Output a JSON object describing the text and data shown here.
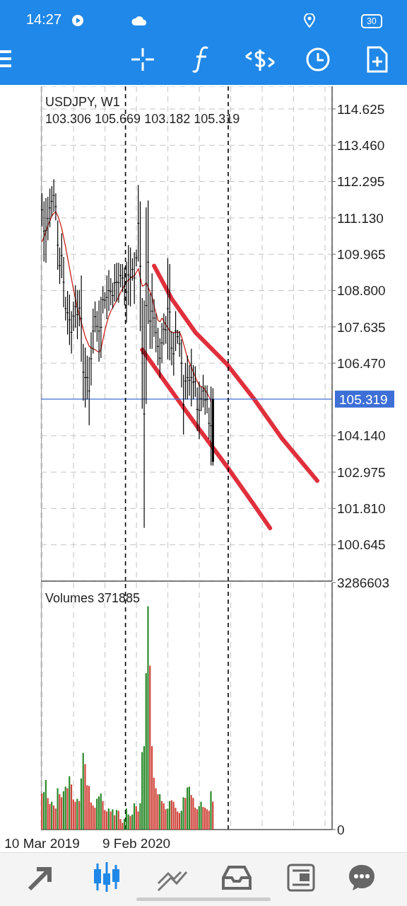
{
  "chart_data": [
    {
      "type": "candlestick",
      "title": "USDJPY, W1",
      "annotations": [
        "103.306 105.669 103.182 105.319",
        "14:27",
        "30"
      ],
      "x": [
        "2019-03-10",
        "2019-03-17",
        "2019-03-24",
        "2019-03-31",
        "2019-04-07",
        "2019-04-14",
        "2019-04-21",
        "2019-04-28",
        "2019-05-05",
        "2019-05-12",
        "2019-05-19",
        "2019-05-26",
        "2019-06-02",
        "2019-06-09",
        "2019-06-16",
        "2019-06-23",
        "2019-06-30",
        "2019-07-07",
        "2019-07-14",
        "2019-07-21",
        "2019-07-28",
        "2019-08-04",
        "2019-08-11",
        "2019-08-18",
        "2019-08-25",
        "2019-09-01",
        "2019-09-08",
        "2019-09-15",
        "2019-09-22",
        "2019-09-29",
        "2019-10-06",
        "2019-10-13",
        "2019-10-20",
        "2019-10-27",
        "2019-11-03",
        "2019-11-10",
        "2019-11-17",
        "2019-11-24",
        "2019-12-01",
        "2019-12-08",
        "2019-12-15",
        "2019-12-22",
        "2019-12-29",
        "2020-01-05",
        "2020-01-12",
        "2020-01-19",
        "2020-01-26",
        "2020-02-02",
        "2020-02-09",
        "2020-02-16",
        "2020-02-23",
        "2020-03-01",
        "2020-03-08",
        "2020-03-15",
        "2020-03-22",
        "2020-03-29",
        "2020-04-05",
        "2020-04-12",
        "2020-04-19",
        "2020-04-26",
        "2020-05-03",
        "2020-05-10",
        "2020-05-17",
        "2020-05-24",
        "2020-05-31",
        "2020-06-07",
        "2020-06-14",
        "2020-06-21",
        "2020-06-28",
        "2020-07-05",
        "2020-07-12",
        "2020-07-19",
        "2020-07-26",
        "2020-08-02",
        "2020-08-09",
        "2020-08-16",
        "2020-08-23",
        "2020-08-30",
        "2020-09-06",
        "2020-09-13",
        "2020-09-20",
        "2020-09-27",
        "2020-10-04",
        "2020-10-11",
        "2020-10-18",
        "2020-10-25",
        "2020-11-01",
        "2020-11-08"
      ],
      "ohlc": [
        [
          111.39,
          111.92,
          110.86,
          111.39
        ],
        [
          110.7,
          111.66,
          109.73,
          110.7
        ],
        [
          110.73,
          111.77,
          109.69,
          110.73
        ],
        [
          111.11,
          111.81,
          110.41,
          111.11
        ],
        [
          111.45,
          112.07,
          110.83,
          111.45
        ],
        [
          111.66,
          112.15,
          111.17,
          111.66
        ],
        [
          111.85,
          112.37,
          111.32,
          111.85
        ],
        [
          111.49,
          111.92,
          111.05,
          111.49
        ],
        [
          110.26,
          111.05,
          109.47,
          110.26
        ],
        [
          109.6,
          110.18,
          109.01,
          109.6
        ],
        [
          109.92,
          110.64,
          109.2,
          109.92
        ],
        [
          109.07,
          109.88,
          108.26,
          109.07
        ],
        [
          108.22,
          108.6,
          107.84,
          108.22
        ],
        [
          108.09,
          108.79,
          107.39,
          108.09
        ],
        [
          107.86,
          108.67,
          107.05,
          107.86
        ],
        [
          107.46,
          108.14,
          106.78,
          107.46
        ],
        [
          107.98,
          108.45,
          107.5,
          107.98
        ],
        [
          108.29,
          108.97,
          107.61,
          108.29
        ],
        [
          108.03,
          108.82,
          107.24,
          108.03
        ],
        [
          108.24,
          108.82,
          107.65,
          108.24
        ],
        [
          107.9,
          109.28,
          106.52,
          107.9
        ],
        [
          106.18,
          107.09,
          105.27,
          106.18
        ],
        [
          106.01,
          106.97,
          105.05,
          106.01
        ],
        [
          106.01,
          106.71,
          105.31,
          106.01
        ],
        [
          105.58,
          106.67,
          104.48,
          105.58
        ],
        [
          106.61,
          107.46,
          105.76,
          106.61
        ],
        [
          107.5,
          108.22,
          106.78,
          107.5
        ],
        [
          107.96,
          108.45,
          107.46,
          107.96
        ],
        [
          107.65,
          108.14,
          107.16,
          107.65
        ],
        [
          107.5,
          108.48,
          106.52,
          107.5
        ],
        [
          107.62,
          108.6,
          106.63,
          107.62
        ],
        [
          108.51,
          108.94,
          108.07,
          108.51
        ],
        [
          108.49,
          108.75,
          108.22,
          108.49
        ],
        [
          108.58,
          109.28,
          107.88,
          108.58
        ],
        [
          108.8,
          109.46,
          108.14,
          108.8
        ],
        [
          108.77,
          109.2,
          108.33,
          108.77
        ],
        [
          108.64,
          109.05,
          108.22,
          108.64
        ],
        [
          109.05,
          109.65,
          108.45,
          109.05
        ],
        [
          109.07,
          109.69,
          108.45,
          109.07
        ],
        [
          109.05,
          109.69,
          108.41,
          109.05
        ],
        [
          109.28,
          109.65,
          108.9,
          109.28
        ],
        [
          109.2,
          109.65,
          108.75,
          109.2
        ],
        [
          108.94,
          109.54,
          108.33,
          108.94
        ],
        [
          108.75,
          109.73,
          107.77,
          108.75
        ],
        [
          109.3,
          110.26,
          108.33,
          109.3
        ],
        [
          109.24,
          110.18,
          108.29,
          109.24
        ],
        [
          109.48,
          109.84,
          109.12,
          109.48
        ],
        [
          109.2,
          110.03,
          108.37,
          109.2
        ],
        [
          109.85,
          110.11,
          109.58,
          109.85
        ],
        [
          110.96,
          112.19,
          109.73,
          110.96
        ],
        [
          109.58,
          111.66,
          107.5,
          109.58
        ],
        [
          106.79,
          108.56,
          105.01,
          106.79
        ],
        [
          104.84,
          108.48,
          101.19,
          104.84
        ],
        [
          108.32,
          111.47,
          105.16,
          108.32
        ],
        [
          109.71,
          111.69,
          107.73,
          109.71
        ],
        [
          107.82,
          108.71,
          106.93,
          107.82
        ],
        [
          108.14,
          109.35,
          106.93,
          108.14
        ],
        [
          107.92,
          108.52,
          107.31,
          107.92
        ],
        [
          107.45,
          108.07,
          106.82,
          107.45
        ],
        [
          107.01,
          107.61,
          106.4,
          107.01
        ],
        [
          106.63,
          107.27,
          105.99,
          106.63
        ],
        [
          107.12,
          107.76,
          106.48,
          107.12
        ],
        [
          107.56,
          108.07,
          107.05,
          107.56
        ],
        [
          107.54,
          107.99,
          107.09,
          107.54
        ],
        [
          108.22,
          109.84,
          106.59,
          108.22
        ],
        [
          108.11,
          109.65,
          106.56,
          108.11
        ],
        [
          106.95,
          107.5,
          106.4,
          106.95
        ],
        [
          106.77,
          107.46,
          106.07,
          106.77
        ],
        [
          107.5,
          108.14,
          106.86,
          107.5
        ],
        [
          107.32,
          107.54,
          107.09,
          107.32
        ],
        [
          107.09,
          107.5,
          106.67,
          107.09
        ],
        [
          106.47,
          107.24,
          105.69,
          106.47
        ],
        [
          105.14,
          106.1,
          104.18,
          105.14
        ],
        [
          105.9,
          106.48,
          105.31,
          105.9
        ],
        [
          106.01,
          106.71,
          105.31,
          106.01
        ],
        [
          105.92,
          106.41,
          105.42,
          105.92
        ],
        [
          106.01,
          106.93,
          105.08,
          106.01
        ],
        [
          105.86,
          106.41,
          105.31,
          105.86
        ],
        [
          105.88,
          106.37,
          105.39,
          105.88
        ],
        [
          104.99,
          105.69,
          104.29,
          104.99
        ],
        [
          104.96,
          105.88,
          104.03,
          104.96
        ],
        [
          105.33,
          105.72,
          104.93,
          105.33
        ],
        [
          105.58,
          106.1,
          105.05,
          105.58
        ],
        [
          105.29,
          105.76,
          104.82,
          105.29
        ],
        [
          105.31,
          105.76,
          104.86,
          105.31
        ],
        [
          104.54,
          105.05,
          104.03,
          104.54
        ],
        [
          104.46,
          105.72,
          103.19,
          104.46
        ],
        [
          103.306,
          105.669,
          103.182,
          105.319
        ]
      ],
      "color": "#000000",
      "series": [
        {
          "type": "line",
          "color": "#c8231c",
          "values": [
            110.37,
            110.52,
            110.71,
            110.9,
            111.05,
            111.2,
            111.28,
            111.32,
            111.2,
            111.01,
            110.79,
            110.49,
            110.18,
            109.84,
            109.5,
            109.16,
            108.82,
            108.52,
            108.22,
            107.99,
            107.77,
            107.54,
            107.31,
            107.16,
            107.01,
            106.97,
            106.93,
            106.9,
            106.86,
            106.82,
            106.93,
            107.24,
            107.54,
            107.77,
            107.99,
            108.14,
            108.26,
            108.37,
            108.48,
            108.6,
            108.75,
            108.86,
            108.97,
            109.09,
            109.13,
            109.2,
            109.24,
            109.28,
            109.39,
            109.5,
            109.2,
            108.94,
            108.97,
            109.05,
            108.9,
            108.75,
            108.6,
            108.29,
            108.07,
            107.84,
            107.8,
            107.92,
            107.8,
            107.69,
            107.61,
            107.5,
            107.46,
            107.45,
            107.46,
            107.46,
            107.46,
            107.31,
            107.09,
            106.86,
            106.63,
            106.48,
            106.33,
            106.18,
            106.03,
            105.88,
            105.76,
            105.72,
            105.69,
            105.61,
            105.5,
            105.39,
            105.23,
            null
          ]
        },
        {
          "type": "line",
          "color": "#e0303c",
          "x": [
            "2020-04-12",
            "2020-06-14",
            "2020-09-06",
            "2020-12-27",
            "2021-04-04",
            "2021-07-11",
            "2021-11-14"
          ],
          "values": [
            109.59,
            108.53,
            107.46,
            106.44,
            105.31,
            104.06,
            102.7
          ]
        },
        {
          "type": "line",
          "color": "#e0303c",
          "x": [
            "2020-03-01",
            "2020-05-17",
            "2020-09-06",
            "2020-12-27",
            "2021-03-28",
            "2021-05-30"
          ],
          "values": [
            106.9,
            105.92,
            104.52,
            103.16,
            102.0,
            101.18
          ]
        }
      ],
      "xlim": [
        "2019-03-06",
        "2022-01-06"
      ],
      "xticks": [
        {
          "value": "2019-03-10",
          "label": null
        },
        {
          "value": "2019-06-30",
          "label": null
        },
        {
          "value": "2019-10-20",
          "label": null
        },
        {
          "value": "2020-02-09",
          "label": null
        },
        {
          "value": "2020-05-31",
          "label": null
        },
        {
          "value": "2020-09-20",
          "label": null
        },
        {
          "value": "2021-01-10",
          "label": null
        },
        {
          "value": "2021-05-02",
          "label": null
        },
        {
          "value": "2021-08-22",
          "label": null
        },
        {
          "value": "2021-12-12",
          "label": null
        }
      ],
      "ylim": [
        99.48,
        115.35
      ],
      "yticks": [
        114.625,
        {
          "value": 113.46,
          "label": "113.460"
        },
        112.295,
        {
          "value": 111.13,
          "label": "111.130"
        },
        109.965,
        {
          "value": 108.8,
          "label": "108.800"
        },
        107.635,
        {
          "value": 106.47,
          "label": "106.470"
        },
        {
          "value": 104.14,
          "label": "104.140"
        },
        102.975,
        {
          "value": 101.81,
          "label": "101.810"
        },
        100.645
      ],
      "grid": true,
      "tick_labels": "y",
      "ref_lines": [
        {
          "axis": "y",
          "value": 105.319,
          "label": "105.319",
          "color": "#3d6fd6"
        },
        {
          "axis": "x",
          "value": "2020-01-01",
          "color": "#000000",
          "line_style": "dashed"
        },
        {
          "axis": "x",
          "value": "2021-01-01",
          "color": "#000000",
          "line_style": "dashed"
        }
      ]
    },
    {
      "type": "bar",
      "title": "Volumes 371885",
      "x": [
        "2019-03-10",
        "2019-03-17",
        "2019-03-24",
        "2019-03-31",
        "2019-04-07",
        "2019-04-14",
        "2019-04-21",
        "2019-04-28",
        "2019-05-05",
        "2019-05-12",
        "2019-05-19",
        "2019-05-26",
        "2019-06-02",
        "2019-06-09",
        "2019-06-16",
        "2019-06-23",
        "2019-06-30",
        "2019-07-07",
        "2019-07-14",
        "2019-07-21",
        "2019-07-28",
        "2019-08-04",
        "2019-08-11",
        "2019-08-18",
        "2019-08-25",
        "2019-09-01",
        "2019-09-08",
        "2019-09-15",
        "2019-09-22",
        "2019-09-29",
        "2019-10-06",
        "2019-10-13",
        "2019-10-20",
        "2019-10-27",
        "2019-11-03",
        "2019-11-10",
        "2019-11-17",
        "2019-11-24",
        "2019-12-01",
        "2019-12-08",
        "2019-12-15",
        "2019-12-22",
        "2019-12-29",
        "2020-01-05",
        "2020-01-12",
        "2020-01-19",
        "2020-01-26",
        "2020-02-02",
        "2020-02-09",
        "2020-02-16",
        "2020-02-23",
        "2020-03-01",
        "2020-03-08",
        "2020-03-15",
        "2020-03-22",
        "2020-03-29",
        "2020-04-05",
        "2020-04-12",
        "2020-04-19",
        "2020-04-26",
        "2020-05-03",
        "2020-05-10",
        "2020-05-17",
        "2020-05-24",
        "2020-05-31",
        "2020-06-07",
        "2020-06-14",
        "2020-06-21",
        "2020-06-28",
        "2020-07-05",
        "2020-07-12",
        "2020-07-19",
        "2020-07-26",
        "2020-08-02",
        "2020-08-09",
        "2020-08-16",
        "2020-08-23",
        "2020-08-30",
        "2020-09-06",
        "2020-09-13",
        "2020-09-20",
        "2020-09-27",
        "2020-10-04",
        "2020-10-11",
        "2020-10-18",
        "2020-10-25",
        "2020-11-01",
        "2020-11-08"
      ],
      "values": [
        480000,
        500000,
        660000,
        420000,
        340000,
        370000,
        320000,
        280000,
        550000,
        470000,
        430000,
        510000,
        570000,
        550000,
        710000,
        600000,
        400000,
        370000,
        410000,
        380000,
        680000,
        1020000,
        870000,
        590000,
        580000,
        360000,
        320000,
        290000,
        410000,
        440000,
        480000,
        380000,
        260000,
        240000,
        280000,
        240000,
        270000,
        190000,
        260000,
        250000,
        140000,
        90000,
        140000,
        280000,
        200000,
        180000,
        200000,
        350000,
        310000,
        240000,
        350000,
        1030000,
        1110000,
        2080000,
        2970000,
        2180000,
        1110000,
        690000,
        550000,
        470000,
        470000,
        380000,
        350000,
        270000,
        280000,
        380000,
        390000,
        370000,
        290000,
        240000,
        220000,
        250000,
        430000,
        420000,
        560000,
        570000,
        460000,
        420000,
        290000,
        270000,
        310000,
        370000,
        300000,
        290000,
        270000,
        250000,
        510000,
        371885
      ],
      "colors": [
        "#d0463c",
        "#2e8b2e",
        "#2e8b2e",
        "#d0463c",
        "#d0463c",
        "#2e8b2e",
        "#d0463c",
        "#d0463c",
        "#2e8b2e",
        "#d0463c",
        "#d0463c",
        "#2e8b2e",
        "#2e8b2e",
        "#d0463c",
        "#2e8b2e",
        "#d0463c",
        "#d0463c",
        "#d0463c",
        "#2e8b2e",
        "#d0463c",
        "#2e8b2e",
        "#2e8b2e",
        "#d0463c",
        "#d0463c",
        "#d0463c",
        "#d0463c",
        "#d0463c",
        "#d0463c",
        "#2e8b2e",
        "#2e8b2e",
        "#2e8b2e",
        "#d0463c",
        "#d0463c",
        "#d0463c",
        "#2e8b2e",
        "#d0463c",
        "#2e8b2e",
        "#d0463c",
        "#2e8b2e",
        "#d0463c",
        "#d0463c",
        "#d0463c",
        "#2e8b2e",
        "#2e8b2e",
        "#2e8b2e",
        "#d0463c",
        "#2e8b2e",
        "#2e8b2e",
        "#d0463c",
        "#d0463c",
        "#2e8b2e",
        "#2e8b2e",
        "#2e8b2e",
        "#2e8b2e",
        "#2e8b2e",
        "#d0463c",
        "#d0463c",
        "#d0463c",
        "#d0463c",
        "#d0463c",
        "#2e8b2e",
        "#d0463c",
        "#d0463c",
        "#d0463c",
        "#2e8b2e",
        "#2e8b2e",
        "#d0463c",
        "#d0463c",
        "#d0463c",
        "#d0463c",
        "#d0463c",
        "#2e8b2e",
        "#2e8b2e",
        "#d0463c",
        "#2e8b2e",
        "#2e8b2e",
        "#d0463c",
        "#d0463c",
        "#d0463c",
        "#d0463c",
        "#2e8b2e",
        "#2e8b2e",
        "#d0463c",
        "#d0463c",
        "#d0463c",
        "#d0463c",
        "#2e8b2e",
        "#d0463c"
      ],
      "xlim": [
        "2019-03-06",
        "2022-01-06"
      ],
      "xticks": [
        {
          "value": "2019-03-10",
          "label": "10 Mar 2019"
        },
        {
          "value": "2019-06-30",
          "label": null
        },
        {
          "value": "2019-10-20",
          "label": null
        },
        {
          "value": "2020-02-09",
          "label": "9 Feb 2020"
        },
        {
          "value": "2020-05-31",
          "label": null
        },
        {
          "value": "2020-09-20",
          "label": null
        },
        {
          "value": "2021-01-10",
          "label": null
        },
        {
          "value": "2021-05-02",
          "label": null
        },
        {
          "value": "2021-08-22",
          "label": null
        },
        {
          "value": "2021-12-12",
          "label": null
        }
      ],
      "ylim": [
        0,
        3286603
      ],
      "yticks": [
        0,
        3286603
      ],
      "grid": "x",
      "ref_lines": [
        {
          "axis": "x",
          "value": "2020-01-01",
          "color": "#000000",
          "line_style": "dashed"
        },
        {
          "axis": "x",
          "value": "2021-01-01",
          "color": "#000000",
          "line_style": "dashed"
        }
      ]
    }
  ]
}
